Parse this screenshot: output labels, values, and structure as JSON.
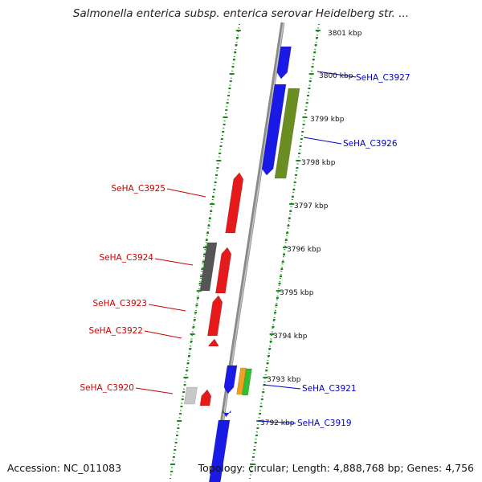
{
  "title": "Salmonella enterica subsp. enterica serovar Heidelberg str. ...",
  "accession": "Accession: NC_011083",
  "footer": "Topology: circular; Length: 4,888,768 bp; Genes: 4,756",
  "colors": {
    "forward_label": "#0000cc",
    "reverse_label": "#cc0000",
    "backbone": "#888888",
    "tick": "#1a8a1a",
    "blue_gene": "#1a1ae6",
    "red_gene": "#e61a1a",
    "olive_gene": "#6b8e23",
    "dark_gray_gene": "#555555",
    "light_gray_gene": "#c8c8c8",
    "orange_gene": "#f0a020",
    "green_gene": "#30c030"
  },
  "kbp_labels": [
    "3801 kbp",
    "3800 kbp",
    "3799 kbp",
    "3798 kbp",
    "3797 kbp",
    "3796 kbp",
    "3795 kbp",
    "3794 kbp",
    "3793 kbp",
    "3792 kbp"
  ],
  "gene_labels": {
    "right": [
      "SeHA_C3927",
      "SeHA_C3926",
      "SeHA_C3921",
      "SeHA_C3919"
    ],
    "left": [
      "SeHA_C3925",
      "SeHA_C3924",
      "SeHA_C3923",
      "SeHA_C3922",
      "SeHA_C3920"
    ]
  }
}
